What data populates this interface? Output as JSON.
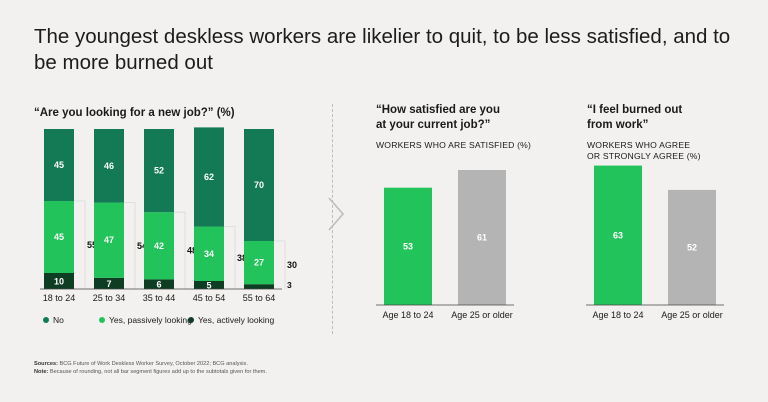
{
  "title": "The youngest deskless workers are likelier to quit, to be less satisfied, and to be more burned out",
  "colors": {
    "no": "#137a55",
    "passive": "#22c35b",
    "active": "#0d3d22",
    "gray": "#b4b4b4",
    "age_under_25": "#22c35b"
  },
  "chart_data": [
    {
      "type": "bar",
      "stacked": true,
      "title": "“Are you looking for a new job?” (%)",
      "categories": [
        "18 to 24",
        "25 to 34",
        "35 to 44",
        "45 to 54",
        "55 to 64"
      ],
      "series": [
        {
          "name": "Yes, actively looking",
          "values": [
            10,
            7,
            6,
            5,
            3
          ]
        },
        {
          "name": "Yes, passively looking",
          "values": [
            45,
            47,
            42,
            34,
            27
          ]
        },
        {
          "name": "No",
          "values": [
            45,
            46,
            52,
            62,
            70
          ]
        }
      ],
      "subtotals": [
        55,
        54,
        48,
        38,
        30
      ],
      "legend": [
        "No",
        "Yes, passively looking",
        "Yes, actively looking"
      ],
      "legend_position": "bottom"
    },
    {
      "type": "bar",
      "title": "“How satisfied are you at your current job?”",
      "subtitle": "WORKERS WHO ARE SATISFIED (%)",
      "categories": [
        "Age 18 to 24",
        "Age 25 or older"
      ],
      "values": [
        53,
        61
      ]
    },
    {
      "type": "bar",
      "title": "“I feel burned out from work”",
      "subtitle": "WORKERS WHO AGREE OR STRONGLY AGREE (%)",
      "categories": [
        "Age 18 to 24",
        "Age 25 or older"
      ],
      "values": [
        63,
        52
      ]
    }
  ],
  "panels": {
    "p1": {
      "title": "“Are you looking for a new job?” (%)"
    },
    "p2": {
      "title_line1": "“How satisfied are you",
      "title_line2": "at your current job?”",
      "sub": "WORKERS WHO ARE SATISFIED (%)"
    },
    "p3": {
      "title_line1": "“I feel burned out",
      "title_line2": "from work”",
      "sub_line1": "WORKERS WHO AGREE",
      "sub_line2": "OR STRONGLY AGREE (%)"
    }
  },
  "footer": {
    "sources_label": "Sources:",
    "sources_text": " BCG Future of Work Deskless Worker Survey, October 2022; BCG analysis.",
    "note_label": "Note:",
    "note_text": " Because of rounding, not all bar segment figures add up to the subtotals given for them."
  }
}
